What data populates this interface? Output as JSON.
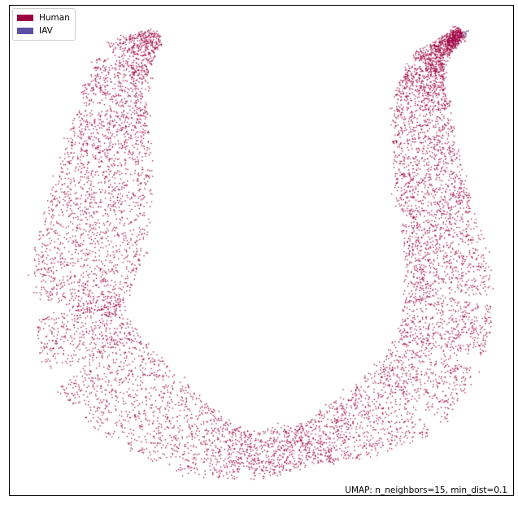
{
  "chart_data": {
    "type": "scatter",
    "title": "",
    "xlabel": "",
    "ylabel": "",
    "grid": false,
    "legend_placement": "top-left",
    "caption": "UMAP: n_neighbors=15, min_dist=0.1",
    "series": [
      {
        "name": "Human",
        "color": "#9e0142",
        "points_approx": 9000
      },
      {
        "name": "IAV",
        "color": "#5e4fa2",
        "points_approx": 6
      }
    ]
  }
}
